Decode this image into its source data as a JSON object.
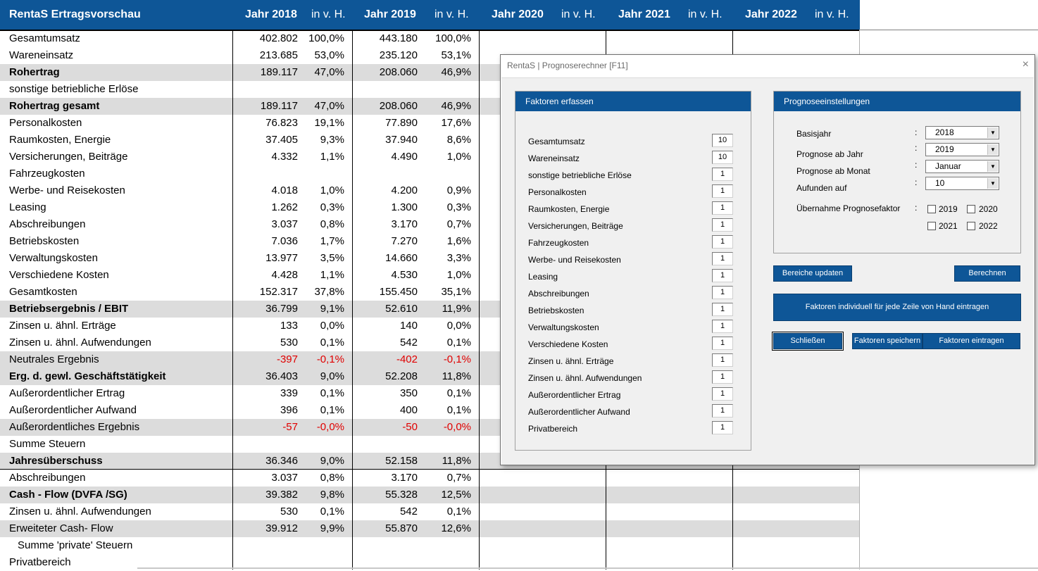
{
  "sheet": {
    "headers": {
      "title": "RentaS Ertragsvorschau",
      "y2018": "Jahr 2018",
      "y2018p": "in v. H.",
      "y2019": "Jahr 2019",
      "y2019p": "in v. H.",
      "y2020": "Jahr 2020",
      "y2020p": "in v. H.",
      "y2021": "Jahr 2021",
      "y2021p": "in v. H.",
      "y2022": "Jahr 2022",
      "y2022p": "in v. H."
    },
    "rows": [
      {
        "label": "Gesamtumsatz",
        "v18": "402.802",
        "p18": "100,0%",
        "v19": "443.180",
        "p19": "100,0%"
      },
      {
        "label": "Wareneinsatz",
        "v18": "213.685",
        "p18": "53,0%",
        "v19": "235.120",
        "p19": "53,1%"
      },
      {
        "label": "Rohertrag",
        "v18": "189.117",
        "p18": "47,0%",
        "v19": "208.060",
        "p19": "46,9%"
      },
      {
        "label": "sonstige betriebliche Erlöse",
        "v18": "",
        "p18": "",
        "v19": "",
        "p19": ""
      },
      {
        "label": "Rohertrag gesamt",
        "v18": "189.117",
        "p18": "47,0%",
        "v19": "208.060",
        "p19": "46,9%"
      },
      {
        "label": "Personalkosten",
        "v18": "76.823",
        "p18": "19,1%",
        "v19": "77.890",
        "p19": "17,6%"
      },
      {
        "label": "Raumkosten,  Energie",
        "v18": "37.405",
        "p18": "9,3%",
        "v19": "37.940",
        "p19": "8,6%"
      },
      {
        "label": "Versicherungen, Beiträge",
        "v18": "4.332",
        "p18": "1,1%",
        "v19": "4.490",
        "p19": "1,0%"
      },
      {
        "label": "Fahrzeugkosten",
        "v18": "",
        "p18": "",
        "v19": "",
        "p19": ""
      },
      {
        "label": "Werbe- und Reisekosten",
        "v18": "4.018",
        "p18": "1,0%",
        "v19": "4.200",
        "p19": "0,9%"
      },
      {
        "label": "Leasing",
        "v18": "1.262",
        "p18": "0,3%",
        "v19": "1.300",
        "p19": "0,3%"
      },
      {
        "label": "Abschreibungen",
        "v18": "3.037",
        "p18": "0,8%",
        "v19": "3.170",
        "p19": "0,7%"
      },
      {
        "label": "Betriebskosten",
        "v18": "7.036",
        "p18": "1,7%",
        "v19": "7.270",
        "p19": "1,6%"
      },
      {
        "label": "Verwaltungskosten",
        "v18": "13.977",
        "p18": "3,5%",
        "v19": "14.660",
        "p19": "3,3%"
      },
      {
        "label": "Verschiedene Kosten",
        "v18": "4.428",
        "p18": "1,1%",
        "v19": "4.530",
        "p19": "1,0%"
      },
      {
        "label": "Gesamtkosten",
        "v18": "152.317",
        "p18": "37,8%",
        "v19": "155.450",
        "p19": "35,1%"
      },
      {
        "label": "Betriebsergebnis / EBIT",
        "v18": "36.799",
        "p18": "9,1%",
        "v19": "52.610",
        "p19": "11,9%"
      },
      {
        "label": "Zinsen u. ähnl. Erträge",
        "v18": "133",
        "p18": "0,0%",
        "v19": "140",
        "p19": "0,0%"
      },
      {
        "label": "Zinsen u. ähnl. Aufwendungen",
        "v18": "530",
        "p18": "0,1%",
        "v19": "542",
        "p19": "0,1%"
      },
      {
        "label": "Neutrales Ergebnis",
        "v18": "-397",
        "p18": "-0,1%",
        "v19": "-402",
        "p19": "-0,1%"
      },
      {
        "label": "Erg. d. gewl. Geschäftstätigkeit",
        "v18": "36.403",
        "p18": "9,0%",
        "v19": "52.208",
        "p19": "11,8%"
      },
      {
        "label": "Außerordentlicher Ertrag",
        "v18": "339",
        "p18": "0,1%",
        "v19": "350",
        "p19": "0,1%"
      },
      {
        "label": "Außerordentlicher Aufwand",
        "v18": "396",
        "p18": "0,1%",
        "v19": "400",
        "p19": "0,1%"
      },
      {
        "label": "Außerordentliches Ergebnis",
        "v18": "-57",
        "p18": "-0,0%",
        "v19": "-50",
        "p19": "-0,0%"
      },
      {
        "label": "Summe Steuern",
        "v18": "",
        "p18": "",
        "v19": "",
        "p19": ""
      },
      {
        "label": "Jahresüberschuss",
        "v18": "36.346",
        "p18": "9,0%",
        "v19": "52.158",
        "p19": "11,8%"
      },
      {
        "label": "Abschreibungen",
        "v18": "3.037",
        "p18": "0,8%",
        "v19": "3.170",
        "p19": "0,7%"
      },
      {
        "label": "Cash - Flow (DVFA /SG)",
        "v18": "39.382",
        "p18": "9,8%",
        "v19": "55.328",
        "p19": "12,5%"
      },
      {
        "label": "Zinsen u. ähnl. Aufwendungen",
        "v18": "530",
        "p18": "0,1%",
        "v19": "542",
        "p19": "0,1%"
      },
      {
        "label": "Erweiteter Cash- Flow",
        "v18": "39.912",
        "p18": "9,9%",
        "v19": "55.870",
        "p19": "12,6%"
      },
      {
        "label": "Summe 'private' Steuern",
        "v18": "",
        "p18": "",
        "v19": "",
        "p19": ""
      },
      {
        "label": "Privatbereich",
        "v18": "",
        "p18": "",
        "v19": "",
        "p19": ""
      }
    ]
  },
  "dialog": {
    "title": "RentaS | Prognoserechner [F11]",
    "close_symbol": "×",
    "factors": {
      "heading": "Faktoren erfassen",
      "items": [
        {
          "label": "Gesamtumsatz",
          "value": "10"
        },
        {
          "label": "Wareneinsatz",
          "value": "10"
        },
        {
          "label": "sonstige betriebliche Erlöse",
          "value": "1"
        },
        {
          "label": "Personalkosten",
          "value": "1"
        },
        {
          "label": "Raumkosten,  Energie",
          "value": "1"
        },
        {
          "label": "Versicherungen, Beiträge",
          "value": "1"
        },
        {
          "label": "Fahrzeugkosten",
          "value": "1"
        },
        {
          "label": "Werbe- und Reisekosten",
          "value": "1"
        },
        {
          "label": "Leasing",
          "value": "1"
        },
        {
          "label": "Abschreibungen",
          "value": "1"
        },
        {
          "label": "Betriebskosten",
          "value": "1"
        },
        {
          "label": "Verwaltungskosten",
          "value": "1"
        },
        {
          "label": "Verschiedene Kosten",
          "value": "1"
        },
        {
          "label": "Zinsen u. ähnl. Erträge",
          "value": "1"
        },
        {
          "label": "Zinsen u. ähnl. Aufwendungen",
          "value": "1"
        },
        {
          "label": "Außerordentlicher Ertrag",
          "value": "1"
        },
        {
          "label": "Außerordentlicher Aufwand",
          "value": "1"
        },
        {
          "label": "Privatbereich",
          "value": "1"
        }
      ]
    },
    "settings": {
      "heading": "Prognoseeinstellungen",
      "colon": ":",
      "basisjahr_label": "Basisjahr",
      "basisjahr_value": "2018",
      "prognose_jahr_label": "Prognose ab Jahr",
      "prognose_jahr_value": "2019",
      "prognose_monat_label": "Prognose ab Monat",
      "prognose_monat_value": "Januar",
      "aufrunden_label": "Aufunden auf",
      "aufrunden_value": "10",
      "uebernahme_label": "Übernahme Prognosefaktor",
      "cb2019": "2019",
      "cb2020": "2020",
      "cb2021": "2021",
      "cb2022": "2022",
      "dropdown_arrow": "▼"
    },
    "buttons": {
      "bereiche_updaten": "Bereiche updaten",
      "berechnen": "Berechnen",
      "faktoren_individuell": "Faktoren individuell für jede Zeile von Hand eintragen",
      "schliessen": "Schließen",
      "faktoren_speichern": "Faktoren speichern",
      "faktoren_eintragen": "Faktoren eintragen"
    }
  },
  "colors": {
    "header_blue": "#0e5697",
    "row_shade": "#dcdcdc",
    "negative_red": "#e00000"
  }
}
